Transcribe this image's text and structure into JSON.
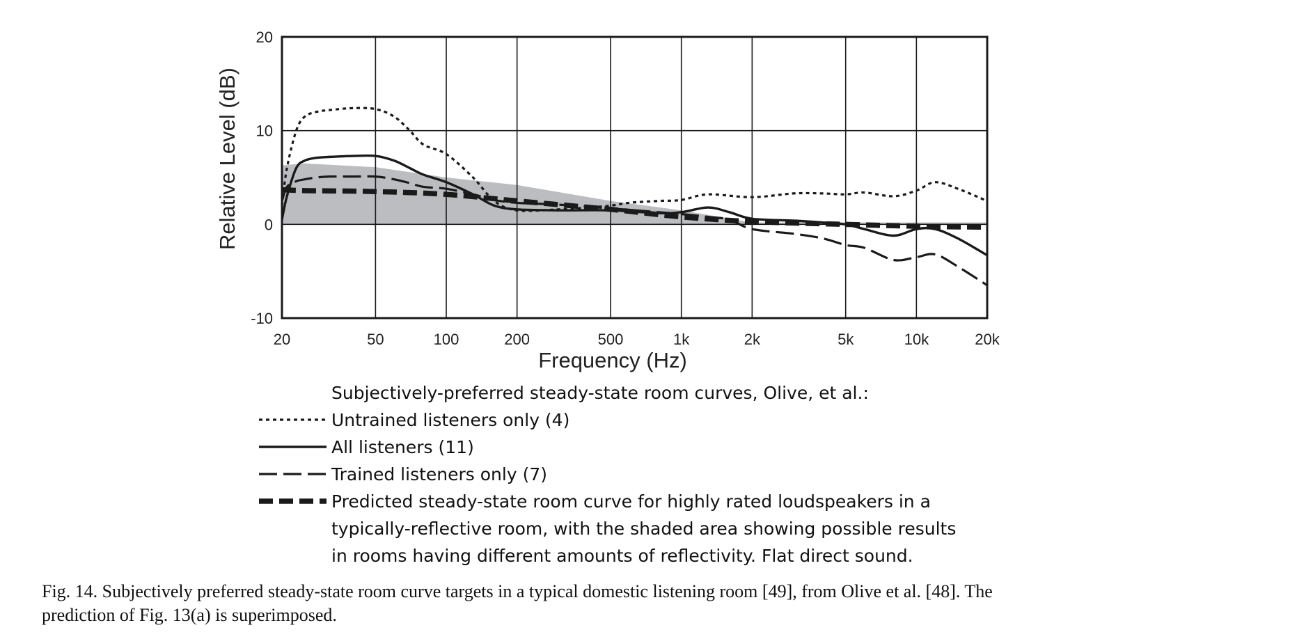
{
  "chart_data": {
    "type": "line",
    "xlabel": "Frequency (Hz)",
    "ylabel": "Relative Level (dB)",
    "xscale": "log",
    "xlim": [
      20,
      20000
    ],
    "ylim": [
      -10,
      20
    ],
    "grid": true,
    "x_ticks": [
      {
        "value": 20,
        "label": "20"
      },
      {
        "value": 50,
        "label": "50"
      },
      {
        "value": 100,
        "label": "100"
      },
      {
        "value": 200,
        "label": "200"
      },
      {
        "value": 500,
        "label": "500"
      },
      {
        "value": 1000,
        "label": "1k"
      },
      {
        "value": 2000,
        "label": "2k"
      },
      {
        "value": 5000,
        "label": "5k"
      },
      {
        "value": 10000,
        "label": "10k"
      },
      {
        "value": 20000,
        "label": "20k"
      }
    ],
    "y_ticks": [
      {
        "value": 20,
        "label": "20"
      },
      {
        "value": 10,
        "label": "10"
      },
      {
        "value": 0,
        "label": "0"
      },
      {
        "value": -10,
        "label": "-10"
      }
    ],
    "shaded_area": {
      "upper": [
        [
          20,
          6.3
        ],
        [
          25,
          6.5
        ],
        [
          50,
          6.1
        ],
        [
          100,
          5.0
        ],
        [
          200,
          4.2
        ],
        [
          500,
          2.5
        ],
        [
          1000,
          1.5
        ],
        [
          2000,
          0.2
        ],
        [
          20000,
          0.2
        ]
      ],
      "lower": [
        [
          20,
          0
        ],
        [
          20000,
          0
        ]
      ],
      "color": "#bcbdc0"
    },
    "series": [
      {
        "name": "Untrained listeners only (4)",
        "style": "dotted",
        "x": [
          20,
          21,
          23,
          25,
          28,
          32,
          40,
          50,
          60,
          70,
          80,
          100,
          130,
          160,
          200,
          300,
          400,
          500,
          600,
          800,
          1000,
          1300,
          2000,
          3000,
          4000,
          5000,
          6000,
          8000,
          10000,
          12000,
          15000,
          20000
        ],
        "y": [
          2,
          6,
          10,
          11.5,
          12,
          12.2,
          12.4,
          12.3,
          11.5,
          10,
          8.5,
          7.5,
          5,
          2.5,
          1.5,
          1.6,
          1.8,
          2,
          2.3,
          2.5,
          2.6,
          3.2,
          2.9,
          3.3,
          3.3,
          3.2,
          3.4,
          3.0,
          3.6,
          4.5,
          3.8,
          2.5
        ]
      },
      {
        "name": "All listeners (11)",
        "style": "solid",
        "x": [
          20,
          21,
          23,
          25,
          28,
          32,
          40,
          50,
          60,
          70,
          80,
          100,
          130,
          160,
          200,
          300,
          500,
          800,
          1000,
          1300,
          1600,
          2000,
          3000,
          4000,
          5000,
          6000,
          8000,
          10000,
          12000,
          15000,
          20000
        ],
        "y": [
          0.5,
          3,
          6,
          6.8,
          7.1,
          7.2,
          7.3,
          7.3,
          6.8,
          6,
          5.3,
          4.5,
          3.2,
          2,
          1.6,
          1.5,
          1.5,
          1.2,
          1.3,
          1.8,
          1.3,
          0.6,
          0.4,
          0.2,
          0,
          -0.5,
          -1.2,
          -0.5,
          -0.5,
          -1.5,
          -3.3
        ]
      },
      {
        "name": "Trained listeners only (7)",
        "style": "longdash",
        "x": [
          20,
          21,
          23,
          25,
          28,
          32,
          40,
          50,
          60,
          70,
          80,
          100,
          130,
          160,
          200,
          300,
          500,
          800,
          1000,
          1300,
          1600,
          2000,
          3000,
          4000,
          5000,
          6000,
          8000,
          10000,
          12000,
          15000,
          20000
        ],
        "y": [
          2.5,
          4,
          4.6,
          4.8,
          5,
          5.1,
          5.1,
          5.1,
          4.8,
          4.4,
          4,
          3.8,
          3.2,
          2.6,
          2.3,
          2.1,
          1.7,
          1.3,
          1.1,
          0.8,
          0.5,
          -0.5,
          -1,
          -1.5,
          -2.2,
          -2.5,
          -3.8,
          -3.5,
          -3.2,
          -4.5,
          -6.5
        ]
      },
      {
        "name": "Predicted steady-state room curve for highly rated loudspeakers in a typically-reflective room, with the shaded area showing possible results in rooms having different amounts of reflectivity.  Flat direct sound.",
        "style": "thickdash",
        "x": [
          20,
          25,
          50,
          100,
          200,
          500,
          1000,
          2000,
          5000,
          10000,
          20000
        ],
        "y": [
          3.7,
          3.6,
          3.5,
          3.2,
          2.5,
          1.6,
          0.8,
          0.3,
          0,
          -0.2,
          -0.3
        ]
      }
    ]
  },
  "legend": {
    "heading": "Subjectively-preferred steady-state room curves, Olive, et al.:",
    "items": [
      {
        "lines": [
          "Untrained listeners only (4)"
        ]
      },
      {
        "lines": [
          "All listeners (11)"
        ]
      },
      {
        "lines": [
          "Trained listeners only (7)"
        ]
      },
      {
        "lines": [
          "Predicted steady-state room curve for highly rated loudspeakers in a",
          "typically-reflective room, with the shaded area showing possible results",
          "in rooms having different amounts of reflectivity.  Flat direct sound."
        ]
      }
    ]
  },
  "caption": {
    "line1": "Fig. 14.  Subjectively preferred steady-state room curve targets in a typical domestic listening room [49], from Olive et al. [48]. The",
    "line2": "prediction of Fig. 13(a) is superimposed."
  }
}
